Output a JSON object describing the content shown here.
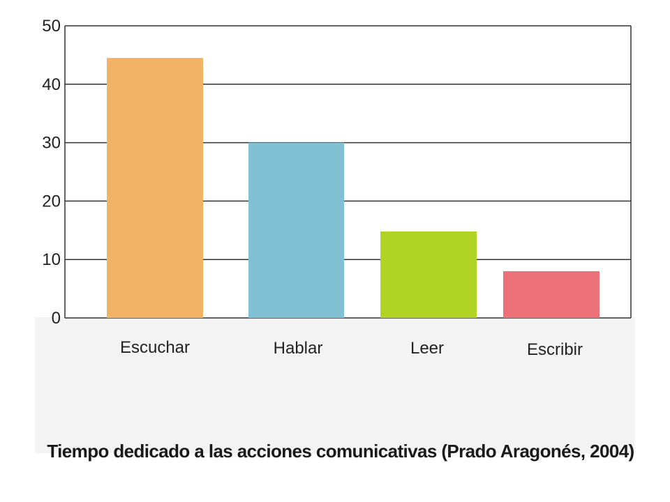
{
  "chart_data": {
    "type": "bar",
    "title": "Tiempo dedicado a las acciones comunicativas (Prado Aragonés, 2004)",
    "xlabel": "",
    "ylabel": "",
    "categories": [
      "Escuchar",
      "Hablar",
      "Leer",
      "Escribir"
    ],
    "values": [
      44.5,
      30,
      14.8,
      8
    ],
    "colors": [
      "#f2b366",
      "#80c1d3",
      "#b1d324",
      "#ec7178"
    ],
    "ylim": [
      0,
      50
    ],
    "yticks": [
      "0",
      "10",
      "20",
      "30",
      "40",
      "50"
    ],
    "grid": true,
    "legend": "none"
  }
}
